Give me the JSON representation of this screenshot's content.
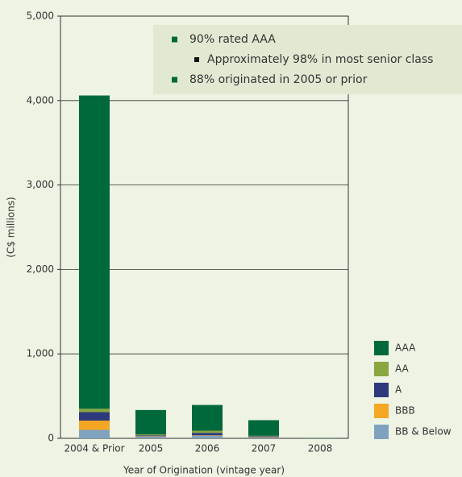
{
  "chart_data": {
    "type": "stacked_bar",
    "categories": [
      "2004 & Prior",
      "2005",
      "2006",
      "2007",
      "2008"
    ],
    "series": [
      {
        "name": "BB & Below",
        "color": "#7fa3bf",
        "values": [
          100,
          20,
          30,
          10,
          2
        ]
      },
      {
        "name": "BBB",
        "color": "#f5a623",
        "values": [
          110,
          5,
          5,
          5,
          0
        ]
      },
      {
        "name": "A",
        "color": "#2e3a7c",
        "values": [
          100,
          10,
          30,
          10,
          0
        ]
      },
      {
        "name": "AA",
        "color": "#8aa63f",
        "values": [
          40,
          10,
          25,
          5,
          0
        ]
      },
      {
        "name": "AAA",
        "color": "#00693c",
        "values": [
          3710,
          290,
          305,
          185,
          3
        ]
      }
    ],
    "ylim": [
      0,
      5000
    ],
    "yticks": [
      0,
      {
        "value": 1000,
        "label": "1,000"
      },
      {
        "value": 2000,
        "label": "2,000"
      },
      {
        "value": 3000,
        "label": "3,000"
      },
      {
        "value": 4000,
        "label": "4,000"
      },
      {
        "value": 5000,
        "label": "5,000"
      }
    ],
    "grid": true,
    "y_label": "(C$ millions)",
    "x_label": "Year of Origination (vintage year)",
    "annotations": [
      {
        "text": "90% rated AAA",
        "items": [
          "Approximately 98% in most senior class"
        ]
      },
      {
        "text": "88% originated in 2005 or prior"
      }
    ]
  }
}
